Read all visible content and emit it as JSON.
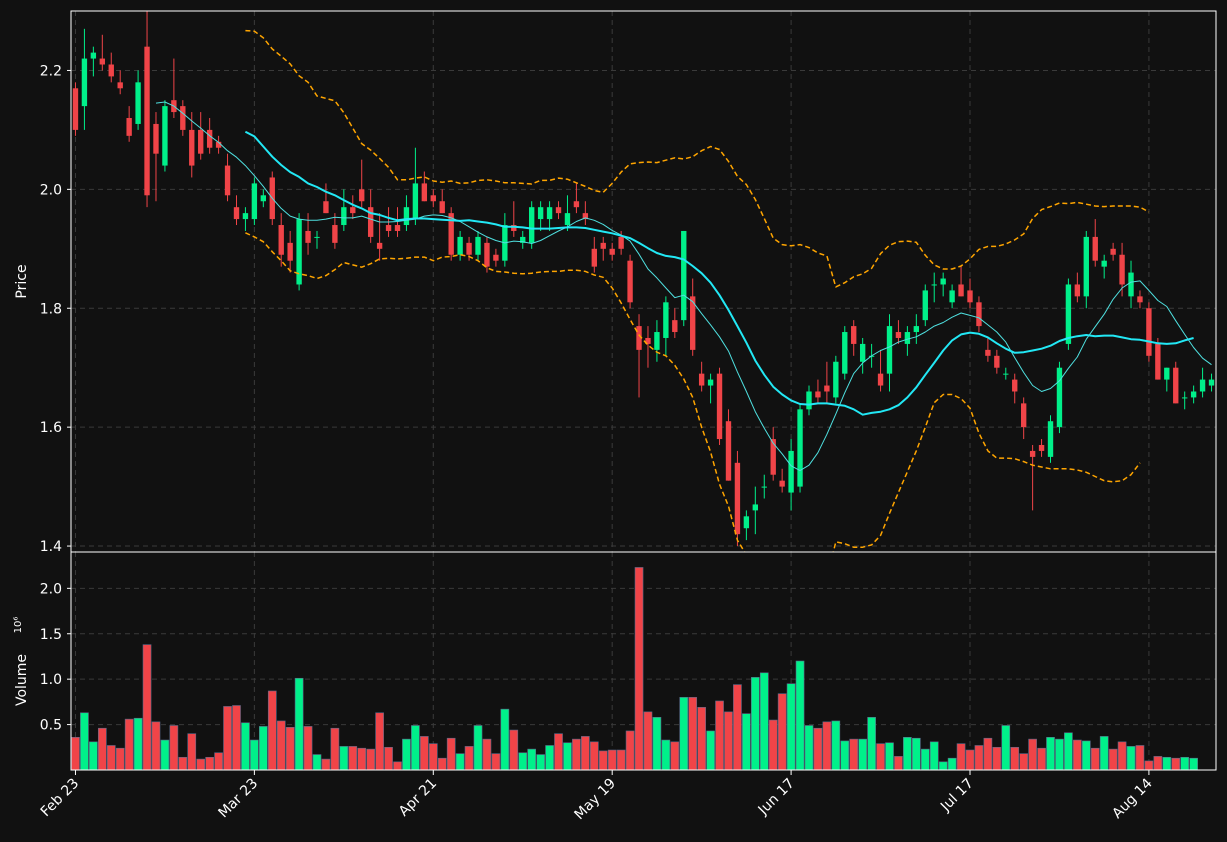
{
  "chart_data": {
    "type": "candlestick",
    "grid": true,
    "colors": {
      "background": "#111111",
      "up": "#00F08A",
      "down": "#F04448",
      "sma_fast": "#4FE0E0",
      "sma_slow": "#22E8F5",
      "bands": "#FFA500",
      "grid": "#3A3A3A",
      "axis": "#FFFFFF"
    },
    "x_ticks": [
      {
        "label": "Feb 23",
        "i": 0
      },
      {
        "label": "Mar 23",
        "i": 20
      },
      {
        "label": "Apr 21",
        "i": 40
      },
      {
        "label": "May 19",
        "i": 60
      },
      {
        "label": "Jun 17",
        "i": 80
      },
      {
        "label": "Jul 17",
        "i": 100
      },
      {
        "label": "Aug 14",
        "i": 120
      }
    ],
    "price_panel": {
      "ylabel": "Price",
      "ylim": [
        1.39,
        2.3
      ],
      "yticks": [
        "1.4",
        "1.6",
        "1.8",
        "2.0",
        "2.2"
      ]
    },
    "volume_panel": {
      "ylabel": "Volume",
      "ylabel_exponent": "10⁶",
      "ylim": [
        0,
        2.4
      ],
      "yticks": [
        "0.5",
        "1.0",
        "1.5",
        "2.0"
      ]
    },
    "candles": [
      [
        2.17,
        2.18,
        2.09,
        2.1
      ],
      [
        2.14,
        2.27,
        2.1,
        2.22
      ],
      [
        2.22,
        2.24,
        2.19,
        2.23
      ],
      [
        2.22,
        2.26,
        2.2,
        2.21
      ],
      [
        2.21,
        2.23,
        2.18,
        2.19
      ],
      [
        2.18,
        2.2,
        2.16,
        2.17
      ],
      [
        2.12,
        2.14,
        2.08,
        2.09
      ],
      [
        2.11,
        2.2,
        2.1,
        2.18
      ],
      [
        2.24,
        2.3,
        1.97,
        1.99
      ],
      [
        2.11,
        2.13,
        1.98,
        2.06
      ],
      [
        2.04,
        2.15,
        2.03,
        2.14
      ],
      [
        2.15,
        2.22,
        2.12,
        2.13
      ],
      [
        2.14,
        2.15,
        2.09,
        2.1
      ],
      [
        2.1,
        2.13,
        2.02,
        2.04
      ],
      [
        2.1,
        2.13,
        2.05,
        2.06
      ],
      [
        2.1,
        2.12,
        2.06,
        2.07
      ],
      [
        2.08,
        2.09,
        2.06,
        2.07
      ],
      [
        2.04,
        2.06,
        1.98,
        1.99
      ],
      [
        1.97,
        1.99,
        1.94,
        1.95
      ],
      [
        1.95,
        1.97,
        1.93,
        1.96
      ],
      [
        1.95,
        2.02,
        1.94,
        2.01
      ],
      [
        1.98,
        2.0,
        1.97,
        1.99
      ],
      [
        2.02,
        2.03,
        1.94,
        1.95
      ],
      [
        1.94,
        1.96,
        1.87,
        1.89
      ],
      [
        1.91,
        1.93,
        1.86,
        1.88
      ],
      [
        1.84,
        1.96,
        1.83,
        1.95
      ],
      [
        1.93,
        1.96,
        1.89,
        1.91
      ],
      [
        1.92,
        1.93,
        1.9,
        1.92
      ],
      [
        1.98,
        2.01,
        1.96,
        1.96
      ],
      [
        1.94,
        1.96,
        1.9,
        1.91
      ],
      [
        1.94,
        2.0,
        1.93,
        1.97
      ],
      [
        1.97,
        1.99,
        1.95,
        1.96
      ],
      [
        2.0,
        2.05,
        1.97,
        1.98
      ],
      [
        1.97,
        2.0,
        1.91,
        1.92
      ],
      [
        1.91,
        1.96,
        1.88,
        1.9
      ],
      [
        1.94,
        1.97,
        1.92,
        1.93
      ],
      [
        1.94,
        1.97,
        1.92,
        1.93
      ],
      [
        1.94,
        1.99,
        1.93,
        1.97
      ],
      [
        1.95,
        2.07,
        1.94,
        2.01
      ],
      [
        2.01,
        2.03,
        1.98,
        1.98
      ],
      [
        1.99,
        2.0,
        1.97,
        1.98
      ],
      [
        1.98,
        2.0,
        1.96,
        1.96
      ],
      [
        1.96,
        1.97,
        1.88,
        1.89
      ],
      [
        1.89,
        1.93,
        1.88,
        1.92
      ],
      [
        1.91,
        1.92,
        1.88,
        1.89
      ],
      [
        1.89,
        1.93,
        1.88,
        1.92
      ],
      [
        1.91,
        1.92,
        1.86,
        1.87
      ],
      [
        1.89,
        1.9,
        1.87,
        1.88
      ],
      [
        1.88,
        1.96,
        1.87,
        1.94
      ],
      [
        1.94,
        1.98,
        1.92,
        1.93
      ],
      [
        1.91,
        1.93,
        1.9,
        1.92
      ],
      [
        1.91,
        1.98,
        1.9,
        1.97
      ],
      [
        1.95,
        1.98,
        1.93,
        1.97
      ],
      [
        1.95,
        1.98,
        1.93,
        1.97
      ],
      [
        1.97,
        1.98,
        1.95,
        1.96
      ],
      [
        1.94,
        1.99,
        1.93,
        1.96
      ],
      [
        1.98,
        2.01,
        1.96,
        1.97
      ],
      [
        1.96,
        1.98,
        1.94,
        1.95
      ],
      [
        1.9,
        1.92,
        1.86,
        1.87
      ],
      [
        1.91,
        1.92,
        1.88,
        1.9
      ],
      [
        1.9,
        1.91,
        1.88,
        1.89
      ],
      [
        1.92,
        1.93,
        1.89,
        1.9
      ],
      [
        1.88,
        1.89,
        1.8,
        1.81
      ],
      [
        1.77,
        1.79,
        1.65,
        1.73
      ],
      [
        1.75,
        1.77,
        1.7,
        1.74
      ],
      [
        1.73,
        1.78,
        1.71,
        1.76
      ],
      [
        1.75,
        1.82,
        1.72,
        1.81
      ],
      [
        1.78,
        1.8,
        1.75,
        1.76
      ],
      [
        1.78,
        1.93,
        1.77,
        1.93
      ],
      [
        1.82,
        1.85,
        1.72,
        1.73
      ],
      [
        1.69,
        1.71,
        1.66,
        1.67
      ],
      [
        1.67,
        1.69,
        1.64,
        1.68
      ],
      [
        1.69,
        1.7,
        1.57,
        1.58
      ],
      [
        1.61,
        1.63,
        1.51,
        1.51
      ],
      [
        1.54,
        1.56,
        1.4,
        1.42
      ],
      [
        1.43,
        1.46,
        1.41,
        1.45
      ],
      [
        1.46,
        1.5,
        1.42,
        1.47
      ],
      [
        1.5,
        1.52,
        1.48,
        1.5
      ],
      [
        1.58,
        1.6,
        1.51,
        1.52
      ],
      [
        1.51,
        1.53,
        1.49,
        1.5
      ],
      [
        1.49,
        1.58,
        1.46,
        1.56
      ],
      [
        1.5,
        1.64,
        1.49,
        1.63
      ],
      [
        1.63,
        1.67,
        1.62,
        1.66
      ],
      [
        1.66,
        1.68,
        1.64,
        1.65
      ],
      [
        1.67,
        1.71,
        1.64,
        1.66
      ],
      [
        1.65,
        1.72,
        1.64,
        1.71
      ],
      [
        1.69,
        1.77,
        1.68,
        1.76
      ],
      [
        1.77,
        1.78,
        1.72,
        1.74
      ],
      [
        1.71,
        1.75,
        1.69,
        1.74
      ],
      [
        1.72,
        1.74,
        1.7,
        1.72
      ],
      [
        1.69,
        1.73,
        1.66,
        1.67
      ],
      [
        1.69,
        1.79,
        1.66,
        1.77
      ],
      [
        1.76,
        1.78,
        1.74,
        1.75
      ],
      [
        1.74,
        1.77,
        1.72,
        1.76
      ],
      [
        1.76,
        1.79,
        1.74,
        1.77
      ],
      [
        1.78,
        1.84,
        1.77,
        1.83
      ],
      [
        1.84,
        1.86,
        1.81,
        1.84
      ],
      [
        1.84,
        1.86,
        1.82,
        1.85
      ],
      [
        1.81,
        1.84,
        1.8,
        1.83
      ],
      [
        1.84,
        1.87,
        1.82,
        1.82
      ],
      [
        1.83,
        1.85,
        1.8,
        1.81
      ],
      [
        1.81,
        1.82,
        1.76,
        1.77
      ],
      [
        1.73,
        1.75,
        1.71,
        1.72
      ],
      [
        1.72,
        1.73,
        1.69,
        1.7
      ],
      [
        1.69,
        1.7,
        1.68,
        1.69
      ],
      [
        1.68,
        1.69,
        1.64,
        1.66
      ],
      [
        1.64,
        1.65,
        1.58,
        1.6
      ],
      [
        1.56,
        1.57,
        1.46,
        1.55
      ],
      [
        1.57,
        1.58,
        1.55,
        1.56
      ],
      [
        1.55,
        1.62,
        1.54,
        1.61
      ],
      [
        1.6,
        1.71,
        1.59,
        1.7
      ],
      [
        1.74,
        1.85,
        1.73,
        1.84
      ],
      [
        1.84,
        1.86,
        1.81,
        1.82
      ],
      [
        1.82,
        1.93,
        1.8,
        1.92
      ],
      [
        1.92,
        1.95,
        1.87,
        1.88
      ],
      [
        1.87,
        1.89,
        1.85,
        1.88
      ],
      [
        1.9,
        1.91,
        1.88,
        1.89
      ],
      [
        1.89,
        1.91,
        1.82,
        1.84
      ],
      [
        1.82,
        1.88,
        1.8,
        1.86
      ],
      [
        1.82,
        1.83,
        1.8,
        1.81
      ],
      [
        1.8,
        1.81,
        1.71,
        1.72
      ],
      [
        1.74,
        1.75,
        1.68,
        1.68
      ],
      [
        1.68,
        1.7,
        1.66,
        1.7
      ],
      [
        1.7,
        1.71,
        1.64,
        1.64
      ],
      [
        1.65,
        1.66,
        1.63,
        1.65
      ],
      [
        1.65,
        1.67,
        1.64,
        1.66
      ],
      [
        1.66,
        1.7,
        1.65,
        1.68
      ],
      [
        1.67,
        1.69,
        1.66,
        1.68
      ]
    ],
    "volume": [
      0.36,
      0.63,
      0.31,
      0.46,
      0.27,
      0.24,
      0.56,
      0.57,
      1.38,
      0.53,
      0.33,
      0.49,
      0.14,
      0.4,
      0.12,
      0.14,
      0.19,
      0.7,
      0.71,
      0.52,
      0.33,
      0.48,
      0.87,
      0.54,
      0.47,
      1.01,
      0.48,
      0.17,
      0.12,
      0.46,
      0.26,
      0.26,
      0.24,
      0.23,
      0.63,
      0.25,
      0.09,
      0.34,
      0.49,
      0.37,
      0.29,
      0.13,
      0.35,
      0.18,
      0.26,
      0.49,
      0.34,
      0.18,
      0.67,
      0.44,
      0.19,
      0.23,
      0.17,
      0.27,
      0.4,
      0.3,
      0.34,
      0.37,
      0.31,
      0.21,
      0.22,
      0.22,
      0.43,
      2.23,
      0.64,
      0.58,
      0.33,
      0.31,
      0.8,
      0.8,
      0.69,
      0.43,
      0.76,
      0.64,
      0.94,
      0.62,
      1.02,
      1.07,
      0.55,
      0.84,
      0.95,
      1.2,
      0.49,
      0.46,
      0.53,
      0.54,
      0.32,
      0.34,
      0.34,
      0.58,
      0.29,
      0.3,
      0.15,
      0.36,
      0.35,
      0.23,
      0.31,
      0.09,
      0.13,
      0.29,
      0.22,
      0.27,
      0.35,
      0.25,
      0.49,
      0.25,
      0.18,
      0.34,
      0.24,
      0.36,
      0.34,
      0.41,
      0.33,
      0.32,
      0.24,
      0.37,
      0.23,
      0.31,
      0.26,
      0.27,
      0.1,
      0.15,
      0.14,
      0.13,
      0.14,
      0.13
    ],
    "sma_fast": [
      null,
      null,
      null,
      null,
      null,
      null,
      null,
      null,
      null,
      2.145,
      2.147,
      2.14,
      2.128,
      2.115,
      2.103,
      2.09,
      2.079,
      2.065,
      2.054,
      2.04,
      2.023,
      2.005,
      1.985,
      1.968,
      1.955,
      1.95,
      1.948,
      1.948,
      1.95,
      1.953,
      1.952,
      1.952,
      1.955,
      1.95,
      1.945,
      1.945,
      1.946,
      1.948,
      1.95,
      1.955,
      1.957,
      1.956,
      1.952,
      1.946,
      1.937,
      1.928,
      1.92,
      1.914,
      1.91,
      1.913,
      1.912,
      1.909,
      1.914,
      1.922,
      1.93,
      1.937,
      1.946,
      1.952,
      1.948,
      1.941,
      1.931,
      1.923,
      1.913,
      1.891,
      1.866,
      1.851,
      1.834,
      1.818,
      1.822,
      1.811,
      1.791,
      1.772,
      1.752,
      1.728,
      1.693,
      1.66,
      1.626,
      1.598,
      1.573,
      1.555,
      1.535,
      1.527,
      1.536,
      1.557,
      1.588,
      1.622,
      1.658,
      1.69,
      1.708,
      1.72,
      1.729,
      1.735,
      1.743,
      1.748,
      1.752,
      1.76,
      1.77,
      1.776,
      1.785,
      1.792,
      1.788,
      1.784,
      1.772,
      1.76,
      1.743,
      1.717,
      1.692,
      1.67,
      1.66,
      1.665,
      1.678,
      1.699,
      1.718,
      1.748,
      1.769,
      1.79,
      1.815,
      1.834,
      1.844,
      1.846,
      1.83,
      1.813,
      1.803,
      1.779,
      1.756,
      1.734,
      1.716,
      1.705
    ],
    "sma_slow": [
      null,
      null,
      null,
      null,
      null,
      null,
      null,
      null,
      null,
      null,
      null,
      null,
      null,
      null,
      null,
      null,
      null,
      null,
      null,
      2.097,
      2.089,
      2.072,
      2.055,
      2.041,
      2.029,
      2.021,
      2.01,
      2.004,
      1.996,
      1.99,
      1.982,
      1.974,
      1.968,
      1.96,
      1.957,
      1.952,
      1.948,
      1.95,
      1.951,
      1.951,
      1.95,
      1.949,
      1.948,
      1.947,
      1.948,
      1.946,
      1.944,
      1.941,
      1.937,
      1.937,
      1.936,
      1.934,
      1.934,
      1.934,
      1.935,
      1.936,
      1.936,
      1.935,
      1.932,
      1.929,
      1.926,
      1.922,
      1.918,
      1.91,
      1.901,
      1.893,
      1.888,
      1.886,
      1.882,
      1.871,
      1.859,
      1.843,
      1.822,
      1.797,
      1.77,
      1.742,
      1.712,
      1.688,
      1.668,
      1.655,
      1.645,
      1.639,
      1.638,
      1.64,
      1.64,
      1.638,
      1.636,
      1.63,
      1.621,
      1.624,
      1.626,
      1.63,
      1.637,
      1.65,
      1.667,
      1.688,
      1.708,
      1.729,
      1.746,
      1.756,
      1.759,
      1.757,
      1.751,
      1.741,
      1.732,
      1.725,
      1.726,
      1.729,
      1.732,
      1.737,
      1.745,
      1.75,
      1.753,
      1.755,
      1.753,
      1.754,
      1.754,
      1.751,
      1.748,
      1.747,
      1.744,
      1.741,
      1.74,
      1.741,
      1.746,
      1.75
    ],
    "band_upper": [
      null,
      null,
      null,
      null,
      null,
      null,
      null,
      null,
      null,
      null,
      null,
      null,
      null,
      null,
      null,
      null,
      null,
      null,
      null,
      2.267,
      2.266,
      2.255,
      2.236,
      2.224,
      2.211,
      2.191,
      2.18,
      2.157,
      2.153,
      2.149,
      2.129,
      2.103,
      2.077,
      2.066,
      2.052,
      2.037,
      2.016,
      2.016,
      2.019,
      2.021,
      2.014,
      2.012,
      2.014,
      2.01,
      2.011,
      2.015,
      2.016,
      2.014,
      2.011,
      2.011,
      2.01,
      2.009,
      2.015,
      2.015,
      2.019,
      2.017,
      2.011,
      2.005,
      1.998,
      1.995,
      2.01,
      2.029,
      2.043,
      2.045,
      2.046,
      2.045,
      2.049,
      2.053,
      2.051,
      2.055,
      2.065,
      2.072,
      2.067,
      2.047,
      2.022,
      2.008,
      1.983,
      1.951,
      1.918,
      1.907,
      1.905,
      1.907,
      1.902,
      1.893,
      1.888,
      1.836,
      1.843,
      1.853,
      1.858,
      1.867,
      1.892,
      1.906,
      1.912,
      1.913,
      1.911,
      1.889,
      1.873,
      1.866,
      1.866,
      1.871,
      1.883,
      1.899,
      1.904,
      1.904,
      1.908,
      1.915,
      1.925,
      1.951,
      1.966,
      1.971,
      1.977,
      1.976,
      1.978,
      1.975,
      1.972,
      1.971,
      1.972,
      1.972,
      1.972,
      1.97,
      1.962
    ],
    "band_lower": [
      null,
      null,
      null,
      null,
      null,
      null,
      null,
      null,
      null,
      null,
      null,
      null,
      null,
      null,
      null,
      null,
      null,
      null,
      null,
      1.927,
      1.92,
      1.912,
      1.895,
      1.88,
      1.863,
      1.858,
      1.855,
      1.85,
      1.855,
      1.865,
      1.877,
      1.873,
      1.869,
      1.875,
      1.883,
      1.884,
      1.883,
      1.884,
      1.886,
      1.886,
      1.88,
      1.886,
      1.887,
      1.89,
      1.887,
      1.88,
      1.868,
      1.862,
      1.861,
      1.859,
      1.858,
      1.859,
      1.861,
      1.862,
      1.862,
      1.864,
      1.864,
      1.862,
      1.856,
      1.852,
      1.834,
      1.809,
      1.781,
      1.755,
      1.738,
      1.726,
      1.72,
      1.704,
      1.681,
      1.65,
      1.6,
      1.558,
      1.504,
      1.467,
      1.41,
      1.385,
      1.36,
      1.345,
      1.345,
      1.345,
      1.345,
      1.345,
      1.345,
      1.345,
      1.345,
      1.407,
      1.404,
      1.398,
      1.398,
      1.402,
      1.418,
      1.455,
      1.49,
      1.525,
      1.56,
      1.6,
      1.641,
      1.655,
      1.655,
      1.648,
      1.632,
      1.59,
      1.56,
      1.548,
      1.548,
      1.547,
      1.542,
      1.536,
      1.533,
      1.53,
      1.53,
      1.53,
      1.528,
      1.524,
      1.517,
      1.51,
      1.508,
      1.51,
      1.52,
      1.54
    ]
  }
}
